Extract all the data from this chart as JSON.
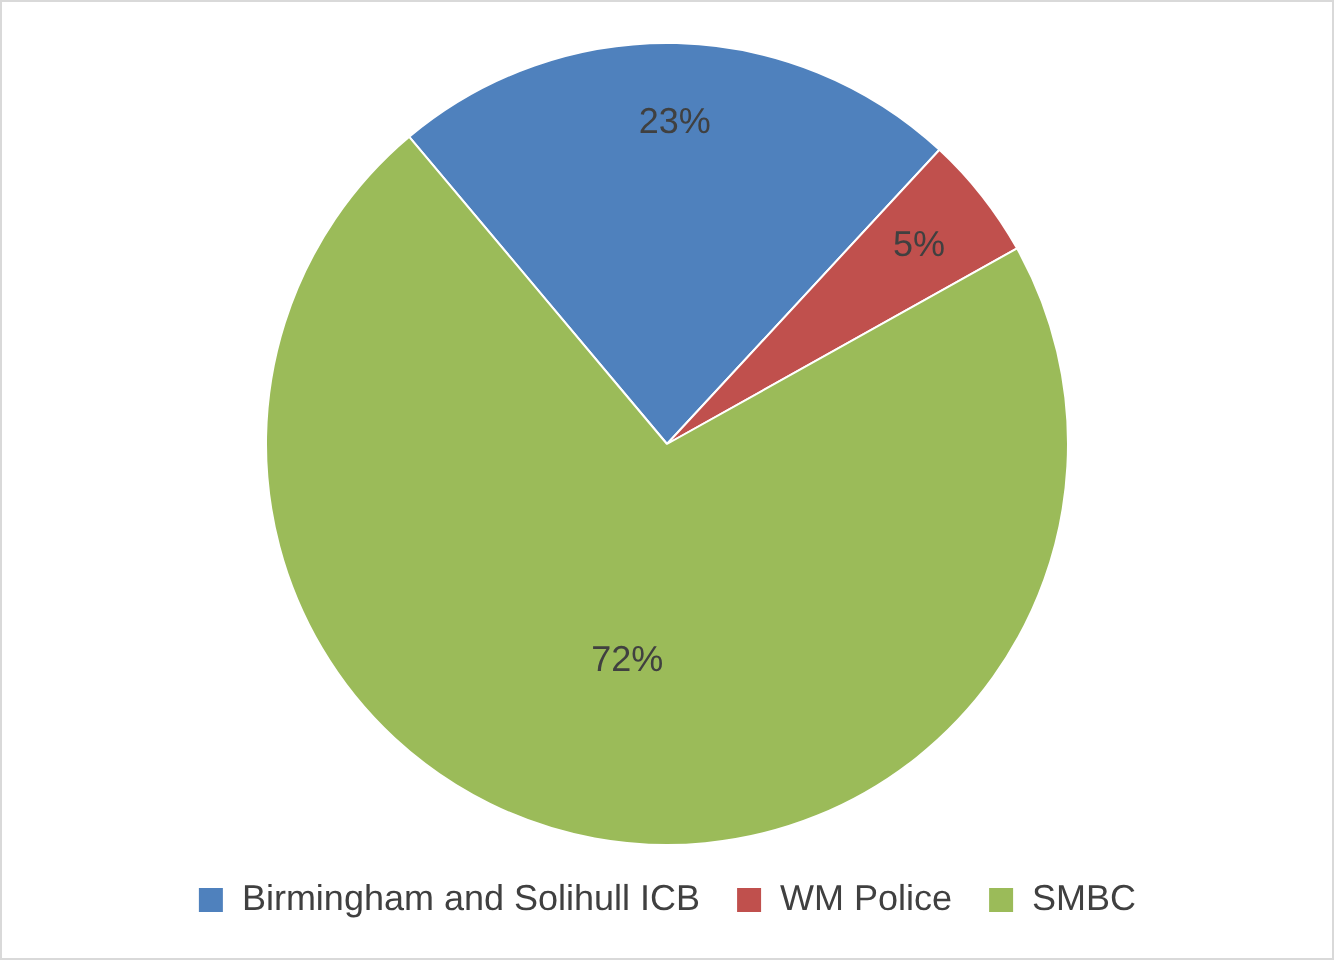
{
  "chart_data": {
    "type": "pie",
    "categories": [
      "Birmingham and Solihull ICB",
      "WM Police",
      "SMBC"
    ],
    "values": [
      23,
      5,
      72
    ],
    "colors": [
      "#4f81bd",
      "#c0504d",
      "#9bbb59"
    ],
    "value_labels": [
      "23%",
      "5%",
      "72%"
    ],
    "legend": "bottom"
  }
}
